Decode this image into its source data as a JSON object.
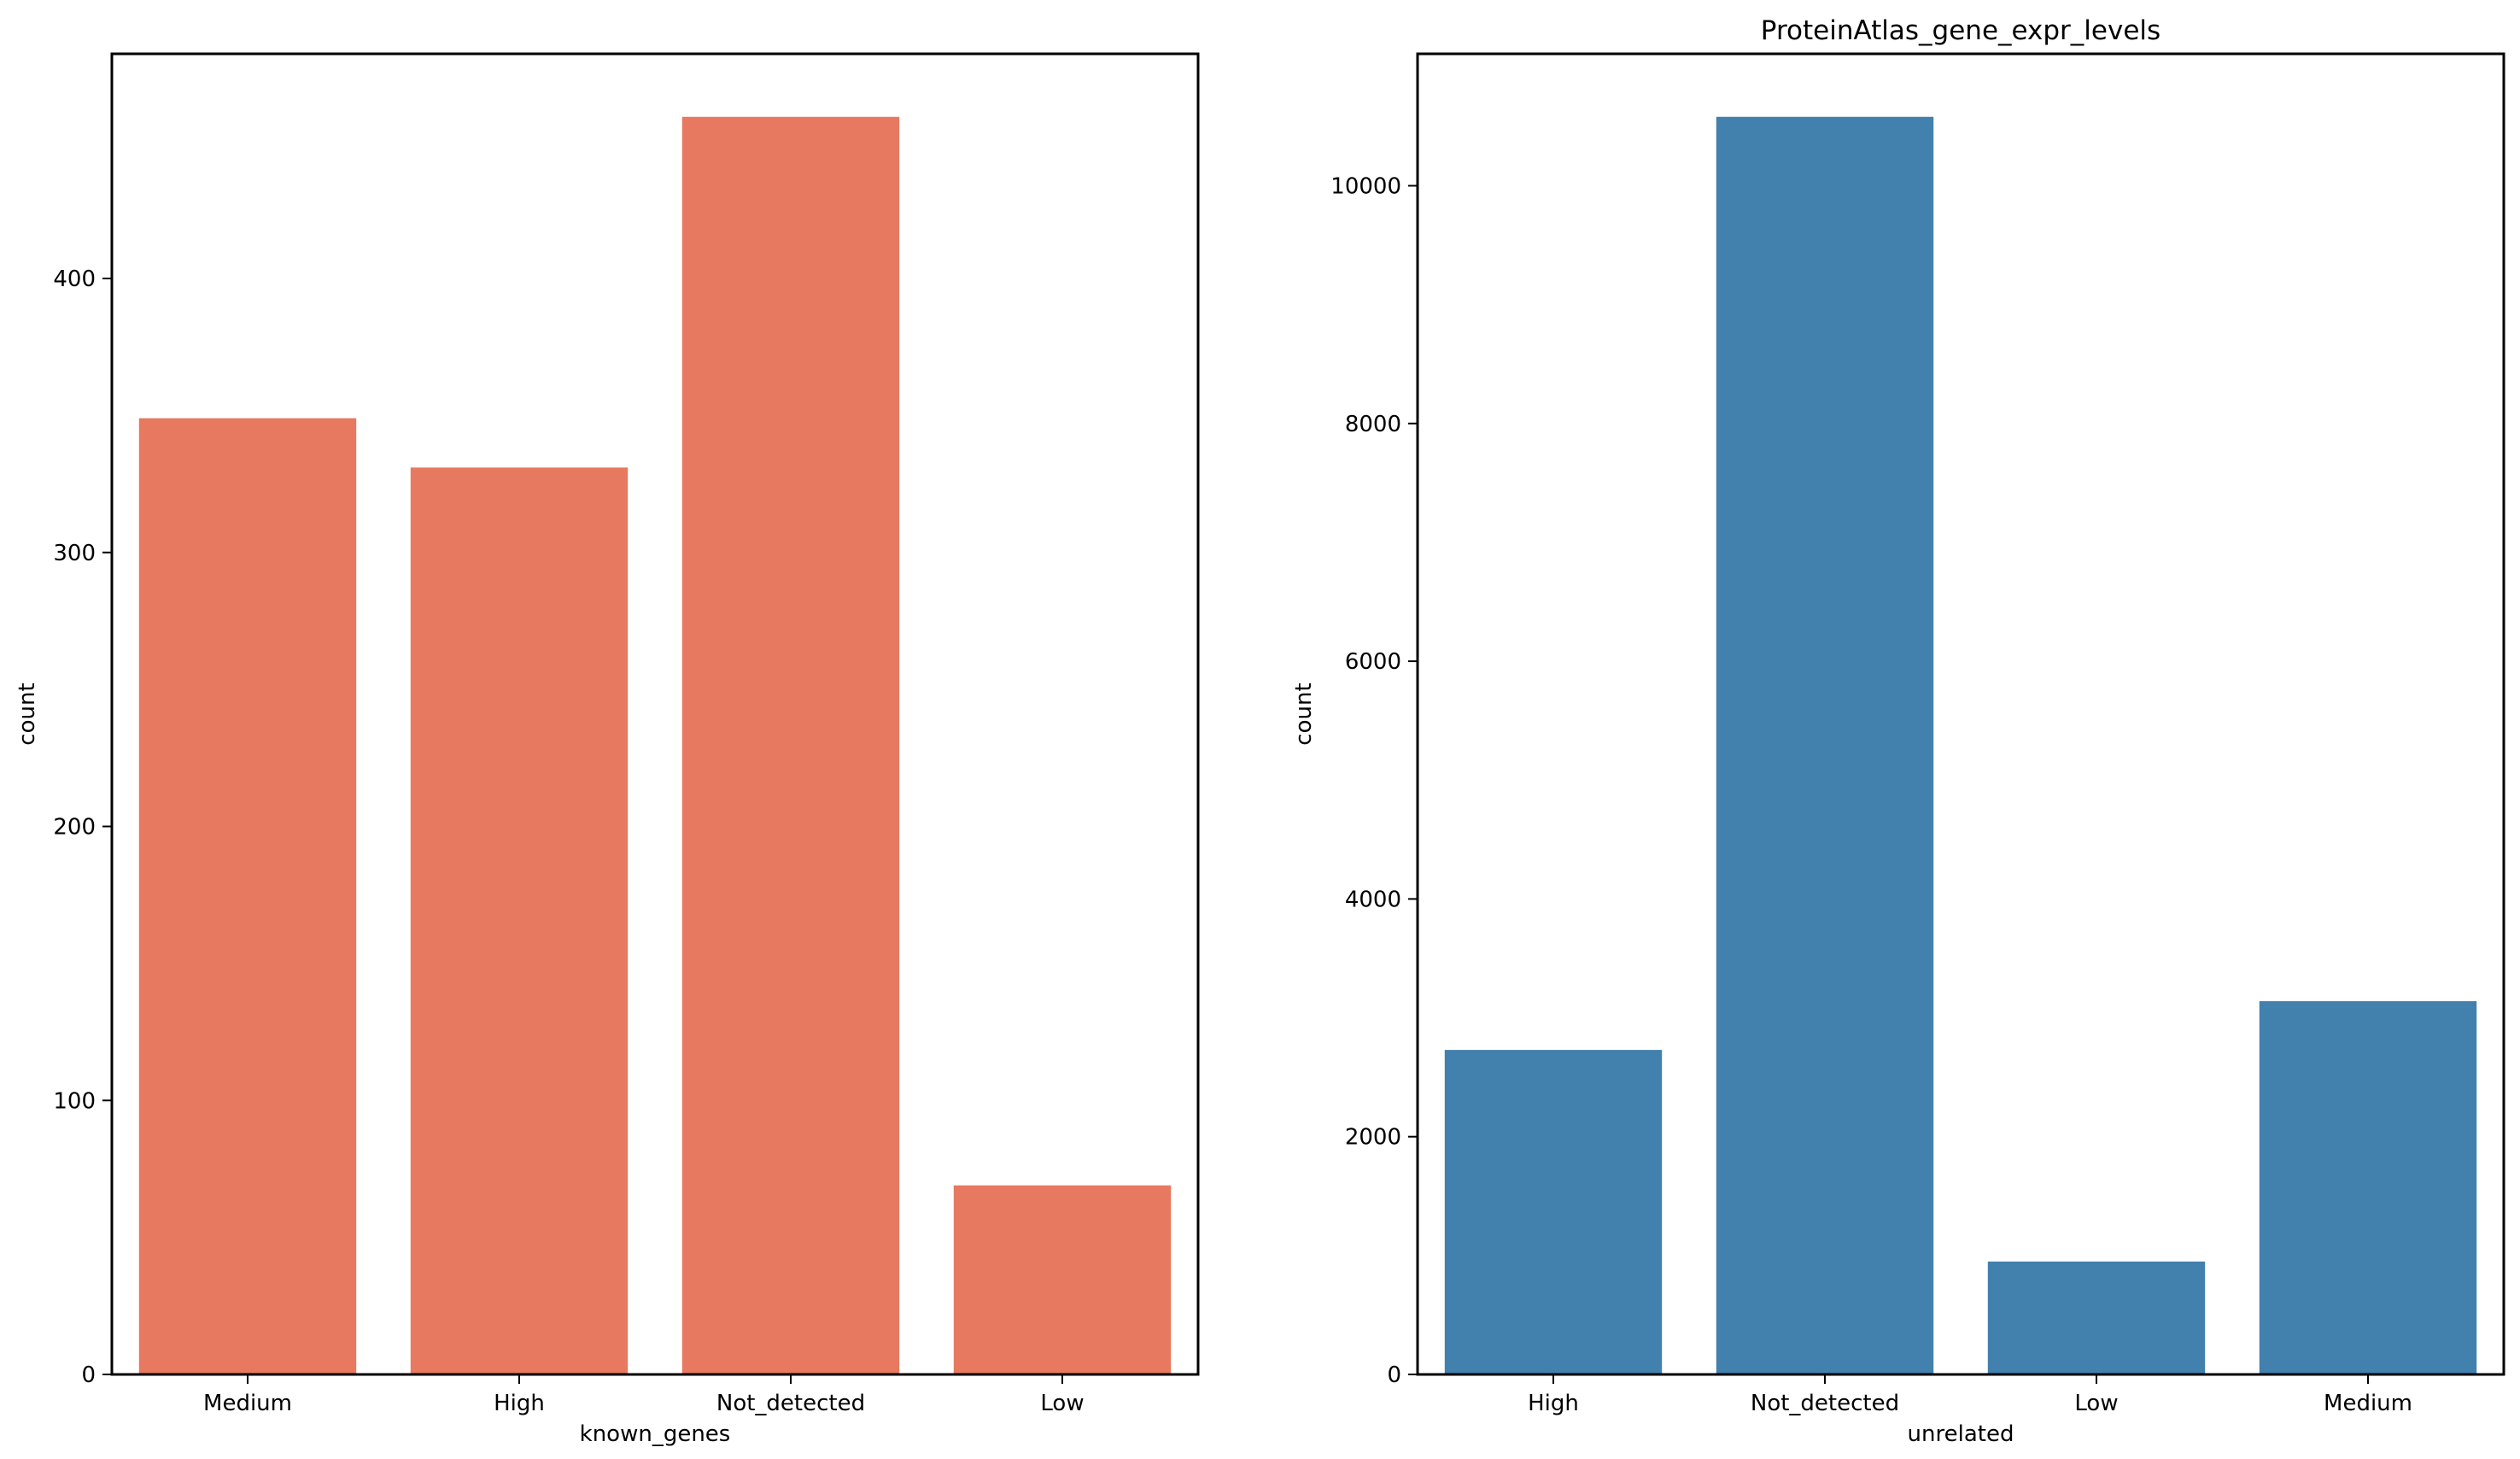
{
  "chart_data": [
    {
      "type": "bar",
      "title": "",
      "xlabel": "known_genes",
      "ylabel": "count",
      "categories": [
        "Medium",
        "High",
        "Not_detected",
        "Low"
      ],
      "values": [
        349,
        331,
        459,
        69
      ],
      "ylim": [
        0,
        482
      ],
      "yticks": [
        0,
        100,
        200,
        300,
        400
      ],
      "color": "#e6795f",
      "grid": false
    },
    {
      "type": "bar",
      "title": "ProteinAtlas_gene_expr_levels",
      "xlabel": "unrelated",
      "ylabel": "count",
      "categories": [
        "High",
        "Not_detected",
        "Low",
        "Medium"
      ],
      "values": [
        2730,
        10580,
        950,
        3140
      ],
      "ylim": [
        0,
        11110
      ],
      "yticks": [
        0,
        2000,
        4000,
        6000,
        8000,
        10000
      ],
      "color": "#4280ad",
      "grid": false
    }
  ]
}
